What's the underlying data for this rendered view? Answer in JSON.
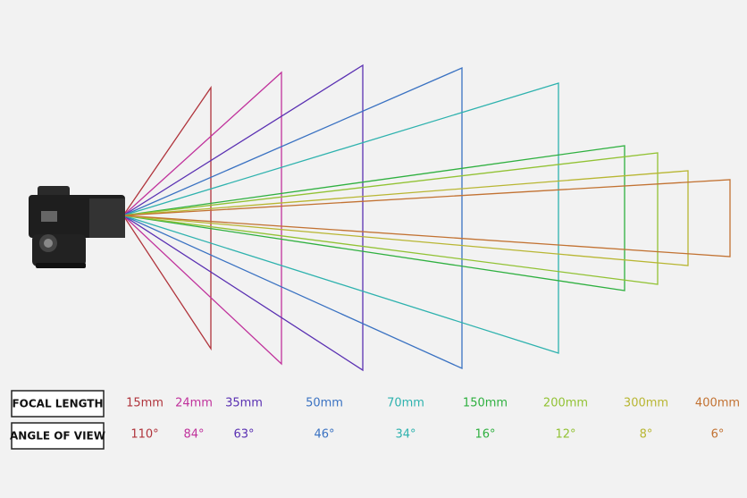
{
  "labels": {
    "focal_length": "FOCAL LENGTH",
    "angle_of_view": "ANGLE OF VIEW"
  },
  "lenses": [
    {
      "focal": "15mm",
      "angle": "110°"
    },
    {
      "focal": "24mm",
      "angle": "84°"
    },
    {
      "focal": "35mm",
      "angle": "63°"
    },
    {
      "focal": "50mm",
      "angle": "46°"
    },
    {
      "focal": "70mm",
      "angle": "34°"
    },
    {
      "focal": "150mm",
      "angle": "16°"
    },
    {
      "focal": "200mm",
      "angle": "12°"
    },
    {
      "focal": "300mm",
      "angle": "8°"
    },
    {
      "focal": "400mm",
      "angle": "6°"
    }
  ]
}
